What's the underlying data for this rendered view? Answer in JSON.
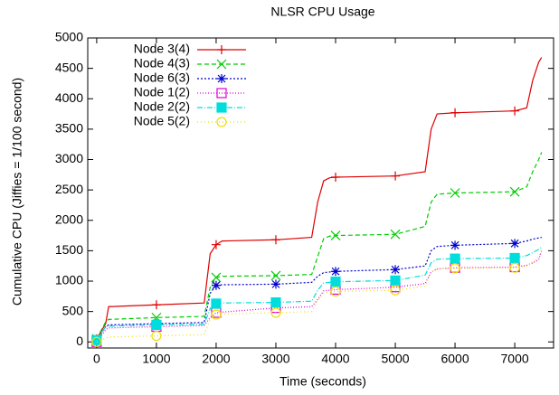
{
  "chart_data": {
    "type": "line",
    "title": "NLSR CPU Usage",
    "xlabel": "Time (seconds)",
    "ylabel": "Cumulative CPU (Jiffies = 1/100 second)",
    "x": [
      0,
      150,
      200,
      1000,
      1800,
      1900,
      2000,
      2100,
      3000,
      3600,
      3700,
      3800,
      3900,
      4000,
      5000,
      5500,
      5600,
      5700,
      6000,
      7000,
      7200,
      7300,
      7400,
      7450
    ],
    "series": [
      {
        "name": "Node 3(4)",
        "color": "#dd0000",
        "marker": "plus",
        "dash": "none",
        "values": [
          50,
          300,
          580,
          610,
          640,
          1450,
          1600,
          1660,
          1680,
          1720,
          2300,
          2650,
          2700,
          2710,
          2730,
          2800,
          3500,
          3750,
          3770,
          3800,
          3850,
          4300,
          4600,
          4680
        ]
      },
      {
        "name": "Node 4(3)",
        "color": "#00cc00",
        "marker": "cross",
        "dash": "5,3",
        "values": [
          50,
          330,
          370,
          400,
          420,
          900,
          1060,
          1080,
          1090,
          1110,
          1400,
          1700,
          1740,
          1750,
          1770,
          1900,
          2300,
          2430,
          2450,
          2470,
          2550,
          2800,
          3000,
          3120
        ]
      },
      {
        "name": "Node 6(3)",
        "color": "#0000cc",
        "marker": "star",
        "dash": "2,2",
        "values": [
          30,
          250,
          280,
          300,
          320,
          800,
          930,
          940,
          950,
          980,
          1080,
          1140,
          1150,
          1160,
          1190,
          1250,
          1500,
          1570,
          1590,
          1620,
          1660,
          1690,
          1710,
          1720
        ]
      },
      {
        "name": "Node 1(2)",
        "color": "#dd00dd",
        "marker": "square",
        "dash": "1,2",
        "values": [
          0,
          200,
          230,
          250,
          270,
          400,
          480,
          490,
          560,
          580,
          700,
          840,
          850,
          860,
          900,
          960,
          1150,
          1200,
          1220,
          1230,
          1260,
          1300,
          1350,
          1500
        ]
      },
      {
        "name": "Node 2(2)",
        "color": "#00dddd",
        "marker": "filled-square",
        "dash": "6,2,1,2",
        "values": [
          30,
          250,
          260,
          280,
          290,
          550,
          630,
          640,
          650,
          670,
          850,
          970,
          980,
          990,
          1010,
          1100,
          1300,
          1360,
          1370,
          1380,
          1420,
          1470,
          1520,
          1560
        ]
      },
      {
        "name": "Node 5(2)",
        "color": "#eedd00",
        "marker": "circle",
        "dash": "1,3",
        "values": [
          0,
          60,
          80,
          100,
          120,
          380,
          450,
          460,
          480,
          500,
          680,
          800,
          820,
          830,
          850,
          920,
          1150,
          1200,
          1210,
          1220,
          1250,
          1300,
          1400,
          1520
        ]
      }
    ],
    "xlim": [
      -150,
      7650
    ],
    "ylim": [
      -100,
      5000
    ],
    "xticks": [
      0,
      1000,
      2000,
      3000,
      4000,
      5000,
      6000,
      7000
    ],
    "yticks": [
      0,
      500,
      1000,
      1500,
      2000,
      2500,
      3000,
      3500,
      4000,
      4500,
      5000
    ],
    "legend": "top-left"
  }
}
